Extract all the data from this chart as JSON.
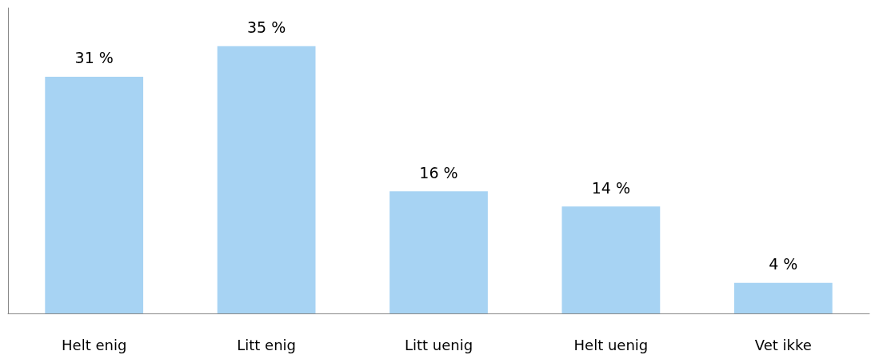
{
  "chart_data": {
    "type": "bar",
    "categories": [
      "Helt enig",
      "Litt enig",
      "Litt uenig",
      "Helt uenig",
      "Vet ikke"
    ],
    "values": [
      31,
      35,
      16,
      14,
      4
    ],
    "value_labels": [
      "31 %",
      "35 %",
      "16 %",
      "14 %",
      "4 %"
    ],
    "color": "#a7d3f3",
    "grid": false,
    "tick_labels": "x"
  }
}
